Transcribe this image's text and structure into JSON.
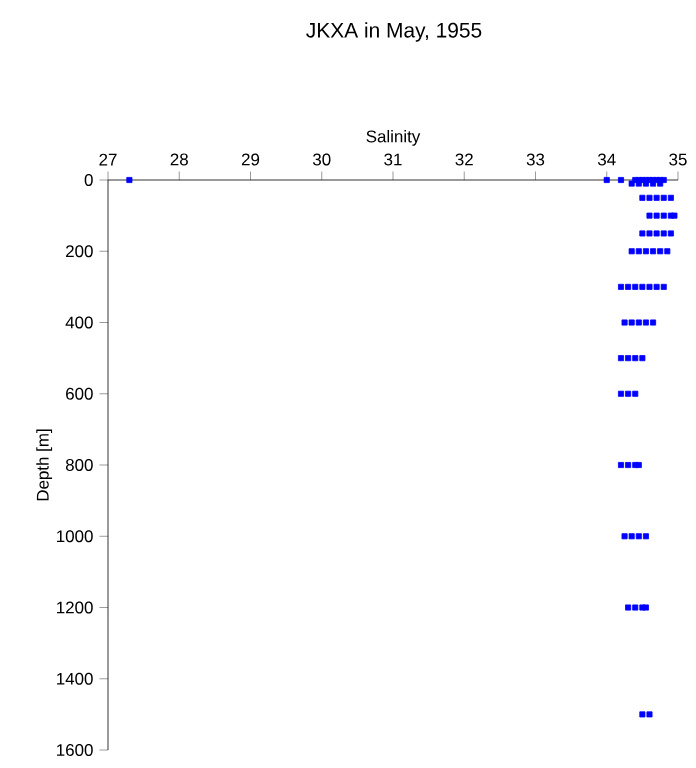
{
  "chart_data": {
    "type": "scatter",
    "title": "JKXA in May, 1955",
    "xlabel": "Salinity",
    "ylabel": "Depth [m]",
    "xlim": [
      27,
      35
    ],
    "xticks": [
      27,
      28,
      29,
      30,
      31,
      32,
      33,
      34,
      35
    ],
    "ylim": [
      1600,
      0
    ],
    "yticks": [
      0,
      200,
      400,
      600,
      800,
      1000,
      1200,
      1400,
      1600
    ],
    "marker": "square",
    "grid": false,
    "series": [
      {
        "color": "#0000ff",
        "x": [
          27.3,
          34.0,
          34.2,
          34.4,
          34.45,
          34.5,
          34.55,
          34.6,
          34.65,
          34.7,
          34.75,
          34.8,
          34.35,
          34.45,
          34.55,
          34.65,
          34.75,
          34.5,
          34.6,
          34.7,
          34.8,
          34.9,
          34.6,
          34.7,
          34.8,
          34.9,
          34.95,
          34.5,
          34.6,
          34.7,
          34.8,
          34.9,
          34.35,
          34.45,
          34.55,
          34.65,
          34.75,
          34.85,
          34.2,
          34.3,
          34.4,
          34.5,
          34.6,
          34.7,
          34.8,
          34.25,
          34.35,
          34.45,
          34.55,
          34.65,
          34.2,
          34.3,
          34.4,
          34.5,
          34.2,
          34.3,
          34.4,
          34.2,
          34.3,
          34.4,
          34.45,
          34.25,
          34.35,
          34.45,
          34.55,
          34.3,
          34.4,
          34.5,
          34.55,
          34.5,
          34.6
        ],
        "values": [
          0,
          0,
          0,
          0,
          0,
          0,
          0,
          0,
          0,
          0,
          0,
          0,
          10,
          10,
          10,
          10,
          10,
          50,
          50,
          50,
          50,
          50,
          100,
          100,
          100,
          100,
          100,
          150,
          150,
          150,
          150,
          150,
          200,
          200,
          200,
          200,
          200,
          200,
          300,
          300,
          300,
          300,
          300,
          300,
          300,
          400,
          400,
          400,
          400,
          400,
          500,
          500,
          500,
          500,
          600,
          600,
          600,
          800,
          800,
          800,
          800,
          1000,
          1000,
          1000,
          1000,
          1200,
          1200,
          1200,
          1200,
          1500,
          1500
        ]
      }
    ]
  }
}
